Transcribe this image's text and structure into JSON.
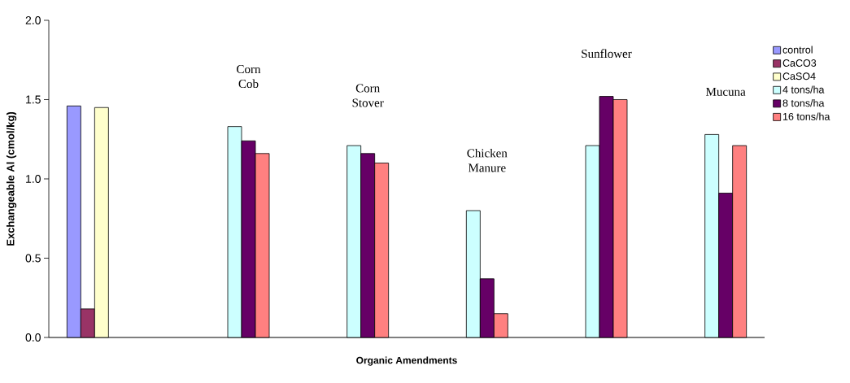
{
  "chart_data": {
    "type": "bar",
    "xlabel": "Organic Amendments",
    "ylabel": "Exchangeable Al (cmol/kg)",
    "categories": [
      null,
      "Corn Cob",
      "Corn Stover",
      "Chicken Manure",
      "Sunflower",
      "Mucuna"
    ],
    "series": [
      {
        "name": "control",
        "color": "#9999ff",
        "values": [
          1.46,
          null,
          null,
          null,
          null,
          null
        ]
      },
      {
        "name": "CaCO3",
        "color": "#993366",
        "values": [
          0.18,
          null,
          null,
          null,
          null,
          null
        ]
      },
      {
        "name": "CaSO4",
        "color": "#ffffcc",
        "values": [
          1.45,
          null,
          null,
          null,
          null,
          null
        ]
      },
      {
        "name": "4 tons/ha",
        "color": "#ccffff",
        "values": [
          null,
          1.33,
          1.21,
          0.8,
          1.21,
          1.28
        ]
      },
      {
        "name": "8 tons/ha",
        "color": "#660066",
        "values": [
          null,
          1.24,
          1.16,
          0.37,
          1.52,
          0.91
        ]
      },
      {
        "name": "16 tons/ha",
        "color": "#ff8080",
        "values": [
          null,
          1.16,
          1.1,
          0.15,
          1.5,
          1.21
        ]
      }
    ],
    "ylim": [
      0,
      2.0
    ],
    "yticks": [
      {
        "value": 0,
        "label": "0.0"
      },
      {
        "value": 0.5,
        "label": "0.5"
      },
      {
        "value": 1.0,
        "label": "1.0"
      },
      {
        "value": 1.5,
        "label": "1.5"
      },
      {
        "value": 2.0,
        "label": "2.0"
      }
    ],
    "legend": "right"
  }
}
